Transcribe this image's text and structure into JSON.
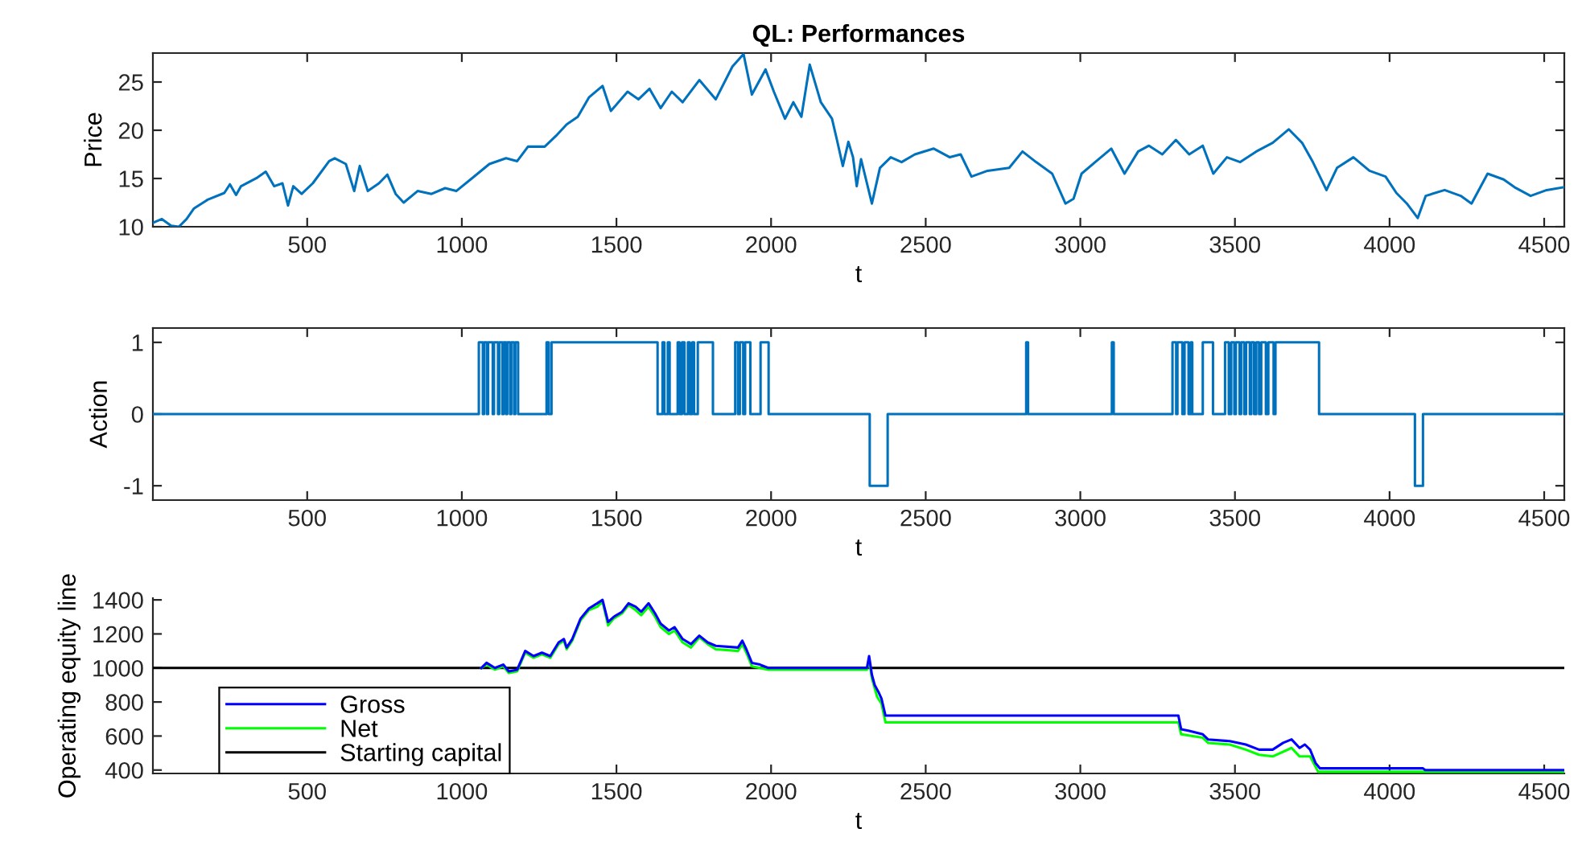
{
  "chart_data": [
    {
      "type": "line",
      "title": "QL: Performances",
      "xlabel": "t",
      "ylabel": "Price",
      "color": "#0072bd",
      "x": [
        1,
        30,
        60,
        85,
        110,
        134,
        178,
        232,
        250,
        270,
        286,
        339,
        366,
        393,
        420,
        438,
        455,
        482,
        518,
        571,
        589,
        625,
        652,
        670,
        696,
        732,
        759,
        786,
        812,
        857,
        902,
        946,
        982,
        1036,
        1089,
        1143,
        1179,
        1214,
        1268,
        1304,
        1339,
        1375,
        1411,
        1455,
        1482,
        1536,
        1571,
        1607,
        1643,
        1679,
        1714,
        1768,
        1821,
        1875,
        1911,
        1938,
        1982,
        2009,
        2045,
        2072,
        2098,
        2125,
        2161,
        2197,
        2213,
        2232,
        2250,
        2265,
        2277,
        2291,
        2326,
        2352,
        2387,
        2422,
        2465,
        2526,
        2578,
        2613,
        2648,
        2700,
        2770,
        2813,
        2857,
        2909,
        2952,
        2978,
        3004,
        3048,
        3100,
        3143,
        3187,
        3222,
        3265,
        3309,
        3352,
        3396,
        3430,
        3474,
        3517,
        3569,
        3622,
        3674,
        3717,
        3752,
        3796,
        3830,
        3883,
        3935,
        3987,
        4022,
        4056,
        4091,
        4117,
        4178,
        4230,
        4265,
        4317,
        4369,
        4404,
        4456,
        4508,
        4565
      ],
      "values": [
        10.4,
        10.8,
        10.1,
        10.0,
        10.8,
        11.9,
        12.8,
        13.5,
        14.4,
        13.3,
        14.2,
        15.1,
        15.7,
        14.2,
        14.5,
        12.2,
        14.2,
        13.4,
        14.5,
        16.8,
        17.1,
        16.5,
        13.7,
        16.3,
        13.7,
        14.5,
        15.4,
        13.4,
        12.5,
        13.7,
        13.4,
        14.0,
        13.7,
        15.1,
        16.5,
        17.1,
        16.8,
        18.3,
        18.3,
        19.4,
        20.6,
        21.4,
        23.4,
        24.6,
        22.0,
        24.0,
        23.2,
        24.3,
        22.3,
        24.0,
        22.9,
        25.2,
        23.2,
        26.6,
        27.9,
        23.7,
        26.3,
        24.0,
        21.2,
        22.9,
        21.4,
        26.8,
        22.9,
        21.2,
        19.0,
        16.3,
        18.8,
        17.2,
        14.2,
        17.0,
        12.4,
        16.1,
        17.2,
        16.7,
        17.5,
        18.1,
        17.2,
        17.5,
        15.2,
        15.8,
        16.1,
        17.8,
        16.7,
        15.5,
        12.4,
        12.9,
        15.5,
        16.7,
        18.1,
        15.5,
        17.8,
        18.4,
        17.5,
        19.0,
        17.5,
        18.4,
        15.5,
        17.2,
        16.7,
        17.8,
        18.7,
        20.1,
        18.7,
        16.7,
        13.8,
        16.1,
        17.2,
        15.8,
        15.2,
        13.5,
        12.4,
        10.9,
        13.2,
        13.8,
        13.2,
        12.4,
        15.5,
        14.9,
        14.1,
        13.2,
        13.8,
        14.1
      ],
      "xlim": [
        1,
        4565
      ],
      "xticks": [
        500,
        1000,
        1500,
        2000,
        2500,
        3000,
        3500,
        4000,
        4500
      ],
      "ylim": [
        10,
        28
      ],
      "yticks": [
        10,
        15,
        20,
        25
      ]
    },
    {
      "type": "step",
      "xlabel": "t",
      "ylabel": "Action",
      "color": "#0072bd",
      "x": [
        1,
        1055,
        1068,
        1072,
        1081,
        1085,
        1100,
        1104,
        1117,
        1121,
        1131,
        1135,
        1143,
        1147,
        1156,
        1160,
        1169,
        1173,
        1182,
        1274,
        1281,
        1290,
        1633,
        1649,
        1655,
        1666,
        1672,
        1698,
        1704,
        1712,
        1720,
        1731,
        1737,
        1745,
        1751,
        1763,
        1812,
        1884,
        1893,
        1899,
        1910,
        1916,
        1933,
        1966,
        1992,
        2319,
        2377,
        2825,
        2831,
        3102,
        3108,
        3298,
        3310,
        3314,
        3330,
        3337,
        3350,
        3357,
        3362,
        3396,
        3429,
        3468,
        3480,
        3488,
        3498,
        3503,
        3515,
        3520,
        3530,
        3536,
        3548,
        3553,
        3562,
        3569,
        3578,
        3585,
        3600,
        3608,
        3625,
        3631,
        3772,
        4082,
        4108,
        4565
      ],
      "values": [
        0,
        1,
        0,
        1,
        0,
        1,
        0,
        1,
        0,
        1,
        0,
        1,
        0,
        1,
        0,
        1,
        0,
        1,
        0,
        1,
        0,
        1,
        0,
        1,
        0,
        1,
        0,
        1,
        0,
        1,
        0,
        1,
        0,
        1,
        0,
        1,
        0,
        1,
        0,
        1,
        0,
        1,
        0,
        1,
        0,
        -1,
        0,
        1,
        0,
        1,
        0,
        1,
        0,
        1,
        0,
        1,
        0,
        1,
        0,
        1,
        0,
        1,
        0,
        1,
        0,
        1,
        0,
        1,
        0,
        1,
        0,
        1,
        0,
        1,
        0,
        1,
        0,
        1,
        0,
        1,
        0,
        -1,
        0,
        0
      ],
      "xlim": [
        1,
        4565
      ],
      "xticks": [
        500,
        1000,
        1500,
        2000,
        2500,
        3000,
        3500,
        4000,
        4500
      ],
      "ylim": [
        -1.2,
        1.2
      ],
      "yticks": [
        -1,
        0,
        1
      ]
    },
    {
      "type": "line",
      "xlabel": "t",
      "ylabel": "Operating equity line",
      "series": [
        {
          "name": "Gross",
          "color": "#0000ff",
          "x": [
            1063,
            1080,
            1107,
            1134,
            1152,
            1179,
            1205,
            1232,
            1259,
            1286,
            1313,
            1330,
            1339,
            1357,
            1384,
            1411,
            1438,
            1455,
            1473,
            1491,
            1518,
            1539,
            1562,
            1580,
            1604,
            1625,
            1643,
            1670,
            1688,
            1714,
            1741,
            1768,
            1795,
            1821,
            1893,
            1907,
            1920,
            1938,
            1964,
            1991,
            2310,
            2317,
            2326,
            2335,
            2347,
            2357,
            2370,
            3317,
            3326,
            3352,
            3396,
            3413,
            3483,
            3535,
            3578,
            3622,
            3656,
            3683,
            3709,
            3726,
            3743,
            3761,
            3775,
            4108,
            4115,
            4565
          ],
          "values": [
            1000,
            1030,
            1000,
            1020,
            980,
            990,
            1100,
            1070,
            1090,
            1070,
            1150,
            1170,
            1120,
            1170,
            1290,
            1350,
            1380,
            1400,
            1270,
            1300,
            1330,
            1380,
            1360,
            1330,
            1380,
            1320,
            1260,
            1220,
            1240,
            1170,
            1140,
            1190,
            1150,
            1130,
            1120,
            1160,
            1110,
            1030,
            1020,
            1000,
            1000,
            1070,
            960,
            900,
            860,
            820,
            720,
            720,
            640,
            630,
            610,
            580,
            570,
            550,
            520,
            520,
            560,
            580,
            530,
            550,
            520,
            440,
            410,
            410,
            400,
            400
          ]
        },
        {
          "name": "Net",
          "color": "#00ff00",
          "x": [
            1063,
            1080,
            1107,
            1134,
            1152,
            1179,
            1205,
            1232,
            1259,
            1286,
            1313,
            1330,
            1339,
            1357,
            1384,
            1411,
            1438,
            1455,
            1473,
            1491,
            1518,
            1539,
            1562,
            1580,
            1604,
            1625,
            1643,
            1670,
            1688,
            1714,
            1741,
            1768,
            1795,
            1821,
            1893,
            1907,
            1920,
            1938,
            1964,
            1991,
            2310,
            2317,
            2326,
            2343,
            2357,
            2370,
            3317,
            3326,
            3396,
            3413,
            3483,
            3535,
            3578,
            3622,
            3683,
            3709,
            3743,
            3769,
            3780,
            4565
          ],
          "values": [
            1000,
            1020,
            990,
            1010,
            970,
            980,
            1090,
            1060,
            1080,
            1060,
            1140,
            1160,
            1110,
            1160,
            1280,
            1340,
            1360,
            1390,
            1250,
            1290,
            1320,
            1370,
            1340,
            1310,
            1360,
            1300,
            1240,
            1200,
            1220,
            1150,
            1120,
            1180,
            1140,
            1110,
            1100,
            1140,
            1090,
            1010,
            1000,
            990,
            990,
            1050,
            940,
            830,
            790,
            680,
            680,
            610,
            590,
            560,
            550,
            520,
            490,
            480,
            530,
            480,
            480,
            390,
            390,
            390
          ]
        },
        {
          "name": "Starting capital",
          "color": "#000000",
          "x": [
            1,
            4565
          ],
          "values": [
            1000,
            1000
          ]
        }
      ],
      "xlim": [
        1,
        4565
      ],
      "xticks": [
        500,
        1000,
        1500,
        2000,
        2500,
        3000,
        3500,
        4000,
        4500
      ],
      "ylim": [
        380,
        1410
      ],
      "yticks": [
        400,
        600,
        800,
        1000,
        1200,
        1400
      ],
      "legend": "bottom left"
    }
  ]
}
